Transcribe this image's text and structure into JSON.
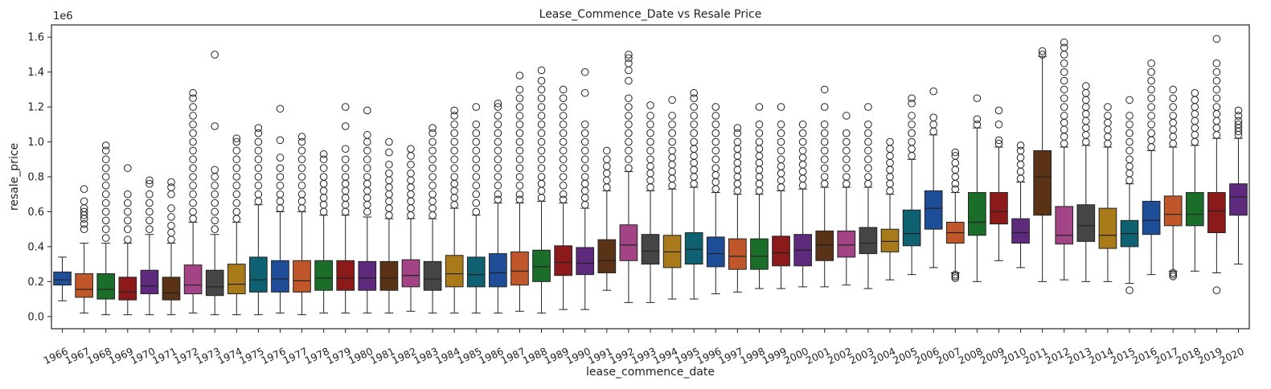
{
  "chart_data": {
    "type": "box",
    "title": "Lease_Commence_Date vs Resale Price",
    "xlabel": "lease_commence_date",
    "ylabel": "resale_price",
    "y_offset_label": "1e6",
    "ylim": [
      -0.07,
      1.67
    ],
    "yticks": [
      0.0,
      0.2,
      0.4,
      0.6,
      0.8,
      1.0,
      1.2,
      1.4,
      1.6
    ],
    "ytick_labels": [
      "0.0",
      "0.2",
      "0.4",
      "0.6",
      "0.8",
      "1.0",
      "1.2",
      "1.4",
      "1.6"
    ],
    "units_note": "values in millions (1e6)",
    "grid": false,
    "categories": [
      "1966",
      "1967",
      "1968",
      "1969",
      "1970",
      "1971",
      "1972",
      "1973",
      "1974",
      "1975",
      "1976",
      "1977",
      "1978",
      "1979",
      "1980",
      "1981",
      "1982",
      "1983",
      "1984",
      "1985",
      "1986",
      "1987",
      "1988",
      "1989",
      "1990",
      "1991",
      "1992",
      "1993",
      "1994",
      "1995",
      "1996",
      "1997",
      "1998",
      "1999",
      "2000",
      "2001",
      "2002",
      "2003",
      "2004",
      "2005",
      "2006",
      "2007",
      "2008",
      "2009",
      "2010",
      "2011",
      "2012",
      "2013",
      "2014",
      "2015",
      "2016",
      "2017",
      "2018",
      "2019",
      "2020"
    ],
    "colors": [
      "#1f4e99",
      "#c0572a",
      "#1a6e2a",
      "#8c1a1a",
      "#5e2a7e",
      "#5a3316",
      "#a34486",
      "#454545",
      "#a87a1a",
      "#0d6170"
    ],
    "boxes": [
      {
        "q1": 0.18,
        "median": 0.21,
        "q3": 0.255,
        "whislo": 0.09,
        "whishi": 0.34,
        "fliers": []
      },
      {
        "q1": 0.11,
        "median": 0.155,
        "q3": 0.245,
        "whislo": 0.02,
        "whishi": 0.42,
        "fliers": [
          0.5,
          0.53,
          0.56,
          0.58,
          0.6,
          0.62,
          0.66,
          0.73
        ]
      },
      {
        "q1": 0.1,
        "median": 0.155,
        "q3": 0.245,
        "whislo": 0.01,
        "whishi": 0.42,
        "fliers": [
          0.45,
          0.5,
          0.55,
          0.6,
          0.65,
          0.7,
          0.75,
          0.8,
          0.85,
          0.9,
          0.95,
          0.98
        ]
      },
      {
        "q1": 0.095,
        "median": 0.14,
        "q3": 0.225,
        "whislo": 0.01,
        "whishi": 0.42,
        "fliers": [
          0.44,
          0.5,
          0.55,
          0.6,
          0.65,
          0.7,
          0.85
        ]
      },
      {
        "q1": 0.13,
        "median": 0.175,
        "q3": 0.265,
        "whislo": 0.01,
        "whishi": 0.47,
        "fliers": [
          0.5,
          0.55,
          0.6,
          0.65,
          0.7,
          0.76,
          0.78
        ]
      },
      {
        "q1": 0.095,
        "median": 0.135,
        "q3": 0.225,
        "whislo": 0.01,
        "whishi": 0.42,
        "fliers": [
          0.44,
          0.48,
          0.52,
          0.57,
          0.62,
          0.7,
          0.74,
          0.77
        ]
      },
      {
        "q1": 0.13,
        "median": 0.18,
        "q3": 0.295,
        "whislo": 0.02,
        "whishi": 0.54,
        "fliers": [
          0.56,
          0.6,
          0.65,
          0.7,
          0.75,
          0.8,
          0.85,
          0.9,
          0.95,
          1.0,
          1.05,
          1.1,
          1.15,
          1.2,
          1.25,
          1.28
        ]
      },
      {
        "q1": 0.12,
        "median": 0.17,
        "q3": 0.265,
        "whislo": 0.01,
        "whishi": 0.47,
        "fliers": [
          0.5,
          0.55,
          0.6,
          0.65,
          0.7,
          0.75,
          0.8,
          0.84,
          1.09,
          1.5
        ]
      },
      {
        "q1": 0.13,
        "median": 0.185,
        "q3": 0.3,
        "whislo": 0.01,
        "whishi": 0.54,
        "fliers": [
          0.56,
          0.6,
          0.65,
          0.7,
          0.75,
          0.8,
          0.85,
          0.9,
          0.95,
          1.0,
          1.02
        ]
      },
      {
        "q1": 0.14,
        "median": 0.21,
        "q3": 0.34,
        "whislo": 0.01,
        "whishi": 0.64,
        "fliers": [
          0.66,
          0.7,
          0.75,
          0.8,
          0.85,
          0.9,
          0.95,
          1.0,
          1.05,
          1.08
        ]
      },
      {
        "q1": 0.14,
        "median": 0.215,
        "q3": 0.32,
        "whislo": 0.02,
        "whishi": 0.6,
        "fliers": [
          0.62,
          0.66,
          0.7,
          0.75,
          0.8,
          0.85,
          0.91,
          1.01,
          1.19
        ]
      },
      {
        "q1": 0.14,
        "median": 0.205,
        "q3": 0.32,
        "whislo": 0.01,
        "whishi": 0.6,
        "fliers": [
          0.62,
          0.66,
          0.7,
          0.75,
          0.8,
          0.85,
          0.9,
          0.95,
          1.0,
          1.03
        ]
      },
      {
        "q1": 0.15,
        "median": 0.22,
        "q3": 0.32,
        "whislo": 0.02,
        "whishi": 0.58,
        "fliers": [
          0.6,
          0.64,
          0.68,
          0.72,
          0.76,
          0.8,
          0.85,
          0.9,
          0.93
        ]
      },
      {
        "q1": 0.15,
        "median": 0.22,
        "q3": 0.32,
        "whislo": 0.02,
        "whishi": 0.58,
        "fliers": [
          0.6,
          0.64,
          0.68,
          0.72,
          0.76,
          0.8,
          0.85,
          0.9,
          0.96,
          1.09,
          1.2
        ]
      },
      {
        "q1": 0.15,
        "median": 0.22,
        "q3": 0.315,
        "whislo": 0.02,
        "whishi": 0.57,
        "fliers": [
          0.6,
          0.64,
          0.68,
          0.72,
          0.76,
          0.8,
          0.85,
          0.9,
          0.95,
          1.0,
          1.04,
          1.18
        ]
      },
      {
        "q1": 0.15,
        "median": 0.22,
        "q3": 0.315,
        "whislo": 0.02,
        "whishi": 0.56,
        "fliers": [
          0.58,
          0.62,
          0.66,
          0.7,
          0.74,
          0.78,
          0.82,
          0.87,
          0.94,
          1.0
        ]
      },
      {
        "q1": 0.17,
        "median": 0.235,
        "q3": 0.325,
        "whislo": 0.03,
        "whishi": 0.56,
        "fliers": [
          0.58,
          0.62,
          0.66,
          0.7,
          0.74,
          0.78,
          0.82,
          0.87,
          0.92,
          0.96
        ]
      },
      {
        "q1": 0.15,
        "median": 0.215,
        "q3": 0.315,
        "whislo": 0.02,
        "whishi": 0.56,
        "fliers": [
          0.58,
          0.62,
          0.66,
          0.7,
          0.75,
          0.8,
          0.85,
          0.9,
          0.95,
          1.0,
          1.05,
          1.08
        ]
      },
      {
        "q1": 0.17,
        "median": 0.245,
        "q3": 0.35,
        "whislo": 0.02,
        "whishi": 0.62,
        "fliers": [
          0.64,
          0.68,
          0.72,
          0.76,
          0.8,
          0.85,
          0.9,
          0.95,
          1.0,
          1.05,
          1.1,
          1.15,
          1.18
        ]
      },
      {
        "q1": 0.17,
        "median": 0.24,
        "q3": 0.34,
        "whislo": 0.02,
        "whishi": 0.58,
        "fliers": [
          0.6,
          0.65,
          0.7,
          0.75,
          0.8,
          0.85,
          0.9,
          0.95,
          1.0,
          1.05,
          1.1,
          1.2
        ]
      },
      {
        "q1": 0.17,
        "median": 0.25,
        "q3": 0.36,
        "whislo": 0.02,
        "whishi": 0.65,
        "fliers": [
          0.67,
          0.7,
          0.75,
          0.8,
          0.85,
          0.9,
          0.95,
          1.0,
          1.05,
          1.1,
          1.15,
          1.2,
          1.22
        ]
      },
      {
        "q1": 0.18,
        "median": 0.26,
        "q3": 0.37,
        "whislo": 0.03,
        "whishi": 0.65,
        "fliers": [
          0.67,
          0.7,
          0.75,
          0.8,
          0.85,
          0.9,
          0.95,
          1.0,
          1.05,
          1.1,
          1.15,
          1.2,
          1.25,
          1.3,
          1.38
        ]
      },
      {
        "q1": 0.2,
        "median": 0.285,
        "q3": 0.38,
        "whislo": 0.02,
        "whishi": 0.66,
        "fliers": [
          0.68,
          0.72,
          0.76,
          0.8,
          0.85,
          0.9,
          0.95,
          1.0,
          1.05,
          1.1,
          1.15,
          1.2,
          1.25,
          1.3,
          1.35,
          1.41
        ]
      },
      {
        "q1": 0.235,
        "median": 0.31,
        "q3": 0.405,
        "whislo": 0.04,
        "whishi": 0.65,
        "fliers": [
          0.67,
          0.7,
          0.75,
          0.8,
          0.85,
          0.9,
          0.95,
          1.0,
          1.05,
          1.1,
          1.15,
          1.2,
          1.25,
          1.3
        ]
      },
      {
        "q1": 0.24,
        "median": 0.305,
        "q3": 0.395,
        "whislo": 0.04,
        "whishi": 0.62,
        "fliers": [
          0.64,
          0.68,
          0.72,
          0.76,
          0.8,
          0.85,
          0.9,
          0.95,
          1.0,
          1.05,
          1.1,
          1.28,
          1.4
        ]
      },
      {
        "q1": 0.25,
        "median": 0.32,
        "q3": 0.44,
        "whislo": 0.15,
        "whishi": 0.72,
        "fliers": [
          0.74,
          0.78,
          0.82,
          0.86,
          0.9,
          0.95
        ]
      },
      {
        "q1": 0.32,
        "median": 0.41,
        "q3": 0.525,
        "whislo": 0.08,
        "whishi": 0.83,
        "fliers": [
          0.85,
          0.9,
          0.95,
          1.0,
          1.05,
          1.1,
          1.15,
          1.2,
          1.25,
          1.35,
          1.41,
          1.45,
          1.48,
          1.5
        ]
      },
      {
        "q1": 0.3,
        "median": 0.375,
        "q3": 0.47,
        "whislo": 0.08,
        "whishi": 0.72,
        "fliers": [
          0.74,
          0.78,
          0.82,
          0.86,
          0.9,
          0.95,
          1.0,
          1.05,
          1.1,
          1.15,
          1.21
        ]
      },
      {
        "q1": 0.28,
        "median": 0.37,
        "q3": 0.465,
        "whislo": 0.1,
        "whishi": 0.73,
        "fliers": [
          0.75,
          0.79,
          0.83,
          0.87,
          0.91,
          0.95,
          1.0,
          1.05,
          1.1,
          1.15,
          1.24
        ]
      },
      {
        "q1": 0.3,
        "median": 0.385,
        "q3": 0.48,
        "whislo": 0.1,
        "whishi": 0.74,
        "fliers": [
          0.76,
          0.8,
          0.84,
          0.88,
          0.92,
          0.96,
          1.0,
          1.05,
          1.1,
          1.15,
          1.2,
          1.25,
          1.28
        ]
      },
      {
        "q1": 0.285,
        "median": 0.36,
        "q3": 0.455,
        "whislo": 0.13,
        "whishi": 0.71,
        "fliers": [
          0.73,
          0.77,
          0.81,
          0.85,
          0.9,
          0.95,
          1.0,
          1.05,
          1.1,
          1.15,
          1.2
        ]
      },
      {
        "q1": 0.27,
        "median": 0.345,
        "q3": 0.445,
        "whislo": 0.14,
        "whishi": 0.7,
        "fliers": [
          0.72,
          0.76,
          0.8,
          0.84,
          0.88,
          0.92,
          0.96,
          1.0,
          1.05,
          1.08
        ]
      },
      {
        "q1": 0.27,
        "median": 0.345,
        "q3": 0.445,
        "whislo": 0.16,
        "whishi": 0.7,
        "fliers": [
          0.72,
          0.76,
          0.8,
          0.84,
          0.88,
          0.92,
          0.96,
          1.0,
          1.05,
          1.1,
          1.2
        ]
      },
      {
        "q1": 0.29,
        "median": 0.365,
        "q3": 0.46,
        "whislo": 0.16,
        "whishi": 0.72,
        "fliers": [
          0.74,
          0.78,
          0.82,
          0.86,
          0.9,
          0.95,
          1.0,
          1.05,
          1.1,
          1.2
        ]
      },
      {
        "q1": 0.29,
        "median": 0.38,
        "q3": 0.47,
        "whislo": 0.17,
        "whishi": 0.73,
        "fliers": [
          0.75,
          0.79,
          0.83,
          0.87,
          0.91,
          0.95,
          1.0,
          1.05,
          1.1
        ]
      },
      {
        "q1": 0.32,
        "median": 0.41,
        "q3": 0.49,
        "whislo": 0.17,
        "whishi": 0.74,
        "fliers": [
          0.76,
          0.8,
          0.85,
          0.9,
          0.95,
          1.0,
          1.05,
          1.1,
          1.2,
          1.3
        ]
      },
      {
        "q1": 0.34,
        "median": 0.41,
        "q3": 0.49,
        "whislo": 0.18,
        "whishi": 0.74,
        "fliers": [
          0.76,
          0.8,
          0.85,
          0.9,
          0.95,
          1.0,
          1.05,
          1.15
        ]
      },
      {
        "q1": 0.36,
        "median": 0.42,
        "q3": 0.51,
        "whislo": 0.16,
        "whishi": 0.74,
        "fliers": [
          0.76,
          0.8,
          0.85,
          0.9,
          0.95,
          1.0,
          1.05,
          1.1,
          1.2
        ]
      },
      {
        "q1": 0.37,
        "median": 0.43,
        "q3": 0.5,
        "whislo": 0.21,
        "whishi": 0.7,
        "fliers": [
          0.72,
          0.76,
          0.8,
          0.84,
          0.88,
          0.92,
          0.96,
          1.0
        ]
      },
      {
        "q1": 0.405,
        "median": 0.475,
        "q3": 0.61,
        "whislo": 0.24,
        "whishi": 0.9,
        "fliers": [
          0.92,
          0.96,
          1.0,
          1.05,
          1.1,
          1.15,
          1.22,
          1.25
        ]
      },
      {
        "q1": 0.5,
        "median": 0.62,
        "q3": 0.72,
        "whislo": 0.28,
        "whishi": 1.04,
        "fliers": [
          1.06,
          1.1,
          1.14,
          1.29
        ]
      },
      {
        "q1": 0.42,
        "median": 0.48,
        "q3": 0.54,
        "whislo": 0.25,
        "whishi": 0.71,
        "fliers": [
          0.22,
          0.23,
          0.24,
          0.73,
          0.76,
          0.8,
          0.84,
          0.88,
          0.92,
          0.94
        ]
      },
      {
        "q1": 0.465,
        "median": 0.54,
        "q3": 0.71,
        "whislo": 0.2,
        "whishi": 1.08,
        "fliers": [
          1.1,
          1.13,
          1.25
        ]
      },
      {
        "q1": 0.53,
        "median": 0.6,
        "q3": 0.71,
        "whislo": 0.32,
        "whishi": 0.97,
        "fliers": [
          0.99,
          1.01,
          1.1,
          1.18
        ]
      },
      {
        "q1": 0.42,
        "median": 0.48,
        "q3": 0.56,
        "whislo": 0.28,
        "whishi": 0.77,
        "fliers": [
          0.79,
          0.83,
          0.87,
          0.91,
          0.95,
          0.98
        ]
      },
      {
        "q1": 0.58,
        "median": 0.8,
        "q3": 0.95,
        "whislo": 0.2,
        "whishi": 1.49,
        "fliers": [
          1.5,
          1.52
        ]
      },
      {
        "q1": 0.415,
        "median": 0.465,
        "q3": 0.63,
        "whislo": 0.21,
        "whishi": 0.97,
        "fliers": [
          0.99,
          1.03,
          1.07,
          1.11,
          1.15,
          1.2,
          1.25,
          1.3,
          1.35,
          1.4,
          1.45,
          1.5,
          1.54,
          1.57
        ]
      },
      {
        "q1": 0.43,
        "median": 0.52,
        "q3": 0.64,
        "whislo": 0.2,
        "whishi": 0.98,
        "fliers": [
          1.0,
          1.04,
          1.08,
          1.12,
          1.16,
          1.2,
          1.24,
          1.28,
          1.32
        ]
      },
      {
        "q1": 0.39,
        "median": 0.465,
        "q3": 0.62,
        "whislo": 0.2,
        "whishi": 0.97,
        "fliers": [
          0.99,
          1.03,
          1.07,
          1.11,
          1.15,
          1.2
        ]
      },
      {
        "q1": 0.4,
        "median": 0.475,
        "q3": 0.55,
        "whislo": 0.19,
        "whishi": 0.76,
        "fliers": [
          0.15,
          0.78,
          0.82,
          0.86,
          0.9,
          0.95,
          1.0,
          1.05,
          1.1,
          1.15,
          1.24
        ]
      },
      {
        "q1": 0.47,
        "median": 0.55,
        "q3": 0.66,
        "whislo": 0.24,
        "whishi": 0.95,
        "fliers": [
          0.97,
          1.01,
          1.05,
          1.1,
          1.15,
          1.2,
          1.25,
          1.3,
          1.35,
          1.4,
          1.45
        ]
      },
      {
        "q1": 0.52,
        "median": 0.585,
        "q3": 0.69,
        "whislo": 0.26,
        "whishi": 0.97,
        "fliers": [
          0.23,
          0.24,
          0.25,
          0.99,
          1.03,
          1.07,
          1.11,
          1.15,
          1.2,
          1.25,
          1.3
        ]
      },
      {
        "q1": 0.52,
        "median": 0.585,
        "q3": 0.71,
        "whislo": 0.26,
        "whishi": 0.98,
        "fliers": [
          1.0,
          1.04,
          1.08,
          1.12,
          1.16,
          1.2,
          1.24,
          1.28
        ]
      },
      {
        "q1": 0.48,
        "median": 0.605,
        "q3": 0.71,
        "whislo": 0.25,
        "whishi": 1.02,
        "fliers": [
          0.15,
          1.04,
          1.08,
          1.12,
          1.16,
          1.2,
          1.25,
          1.3,
          1.35,
          1.4,
          1.45,
          1.59
        ]
      },
      {
        "q1": 0.58,
        "median": 0.685,
        "q3": 0.76,
        "whislo": 0.3,
        "whishi": 1.02,
        "fliers": [
          1.04,
          1.06,
          1.08,
          1.1,
          1.12,
          1.15,
          1.18
        ]
      }
    ]
  }
}
